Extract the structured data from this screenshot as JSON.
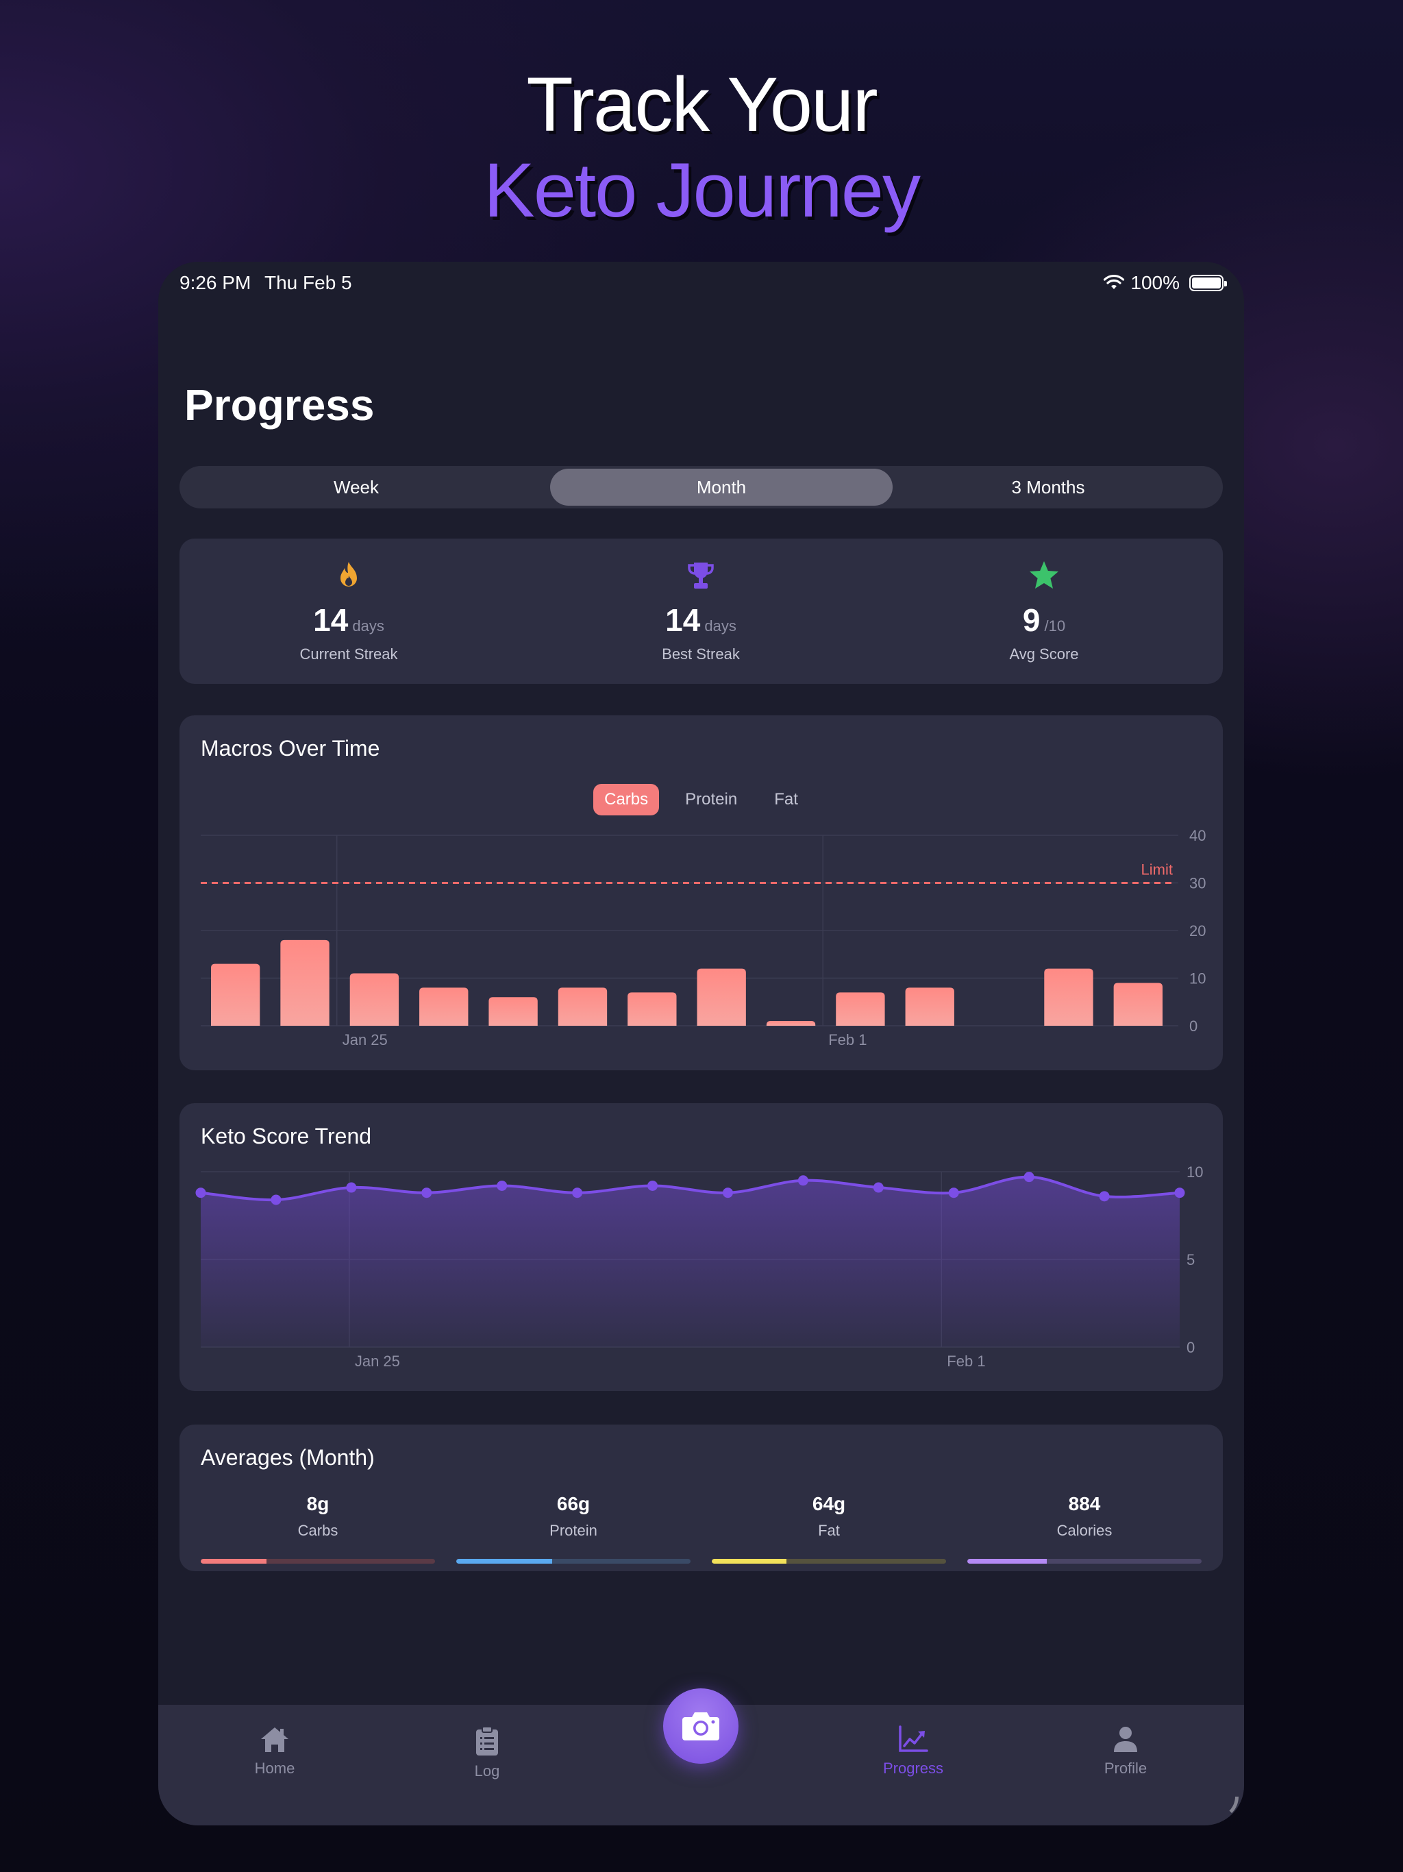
{
  "hero": {
    "line1": "Track Your",
    "line2": "Keto Journey",
    "accent": "#8b5cf6"
  },
  "status_bar": {
    "time": "9:26 PM",
    "date": "Thu Feb 5",
    "battery": "100%"
  },
  "page": {
    "title": "Progress"
  },
  "range_tabs": {
    "items": [
      "Week",
      "Month",
      "3 Months"
    ],
    "selected": "Month"
  },
  "stats": [
    {
      "icon": "flame-icon",
      "value": "14",
      "unit": "days",
      "label": "Current Streak",
      "color": "#f0a531"
    },
    {
      "icon": "trophy-icon",
      "value": "14",
      "unit": "days",
      "label": "Best Streak",
      "color": "#7c4ee6"
    },
    {
      "icon": "star-icon",
      "value": "9",
      "unit": "/10",
      "label": "Avg Score",
      "color": "#3cc36b"
    }
  ],
  "macros_card": {
    "title": "Macros Over Time",
    "tabs": [
      "Carbs",
      "Protein",
      "Fat"
    ],
    "selected": "Carbs",
    "limit_label": "Limit"
  },
  "trend_card": {
    "title": "Keto Score Trend"
  },
  "averages": {
    "title": "Averages (Month)",
    "items": [
      {
        "value": "8g",
        "label": "Carbs",
        "fraction": 0.28,
        "color": "#f47c7c",
        "track": "#5a3a46"
      },
      {
        "value": "66g",
        "label": "Protein",
        "fraction": 0.41,
        "color": "#5aa9f0",
        "track": "#3a4a66"
      },
      {
        "value": "64g",
        "label": "Fat",
        "fraction": 0.32,
        "color": "#f2e15a",
        "track": "#55523e"
      },
      {
        "value": "884",
        "label": "Calories",
        "fraction": 0.34,
        "color": "#b48af5",
        "track": "#4a4566"
      }
    ]
  },
  "tab_bar": {
    "items": [
      {
        "label": "Home",
        "icon": "house-icon"
      },
      {
        "label": "Log",
        "icon": "clipboard-icon"
      },
      {
        "label": "Progress",
        "icon": "chart-icon",
        "active": true
      },
      {
        "label": "Profile",
        "icon": "person-icon"
      }
    ],
    "camera_icon": "camera-icon"
  },
  "chart_data": [
    {
      "type": "bar",
      "title": "Macros Over Time",
      "series": [
        {
          "name": "Carbs",
          "values": [
            13,
            18,
            11,
            8,
            6,
            8,
            7,
            12,
            1,
            7,
            8,
            null,
            12,
            9
          ]
        }
      ],
      "x_tick_labels": [
        "Jan 25",
        "Feb 1"
      ],
      "x_tick_index": [
        2,
        9
      ],
      "ylim": [
        0,
        40
      ],
      "yticks": [
        0,
        10,
        20,
        30,
        40
      ],
      "reference_line": {
        "value": 30,
        "label": "Limit",
        "color": "#f06a6a"
      },
      "color": "#f47c7c",
      "grid": true
    },
    {
      "type": "area",
      "title": "Keto Score Trend",
      "series": [
        {
          "name": "Keto Score",
          "values": [
            8.8,
            8.4,
            9.1,
            8.8,
            9.2,
            8.8,
            9.2,
            8.8,
            9.5,
            9.1,
            8.8,
            9.7,
            8.6,
            8.8
          ]
        }
      ],
      "x_tick_labels": [
        "Jan 25",
        "Feb 1"
      ],
      "x_tick_index": [
        2,
        9
      ],
      "ylim": [
        0,
        10
      ],
      "yticks": [
        0,
        5,
        10
      ],
      "color": "#7c4ee6",
      "grid": true
    }
  ]
}
